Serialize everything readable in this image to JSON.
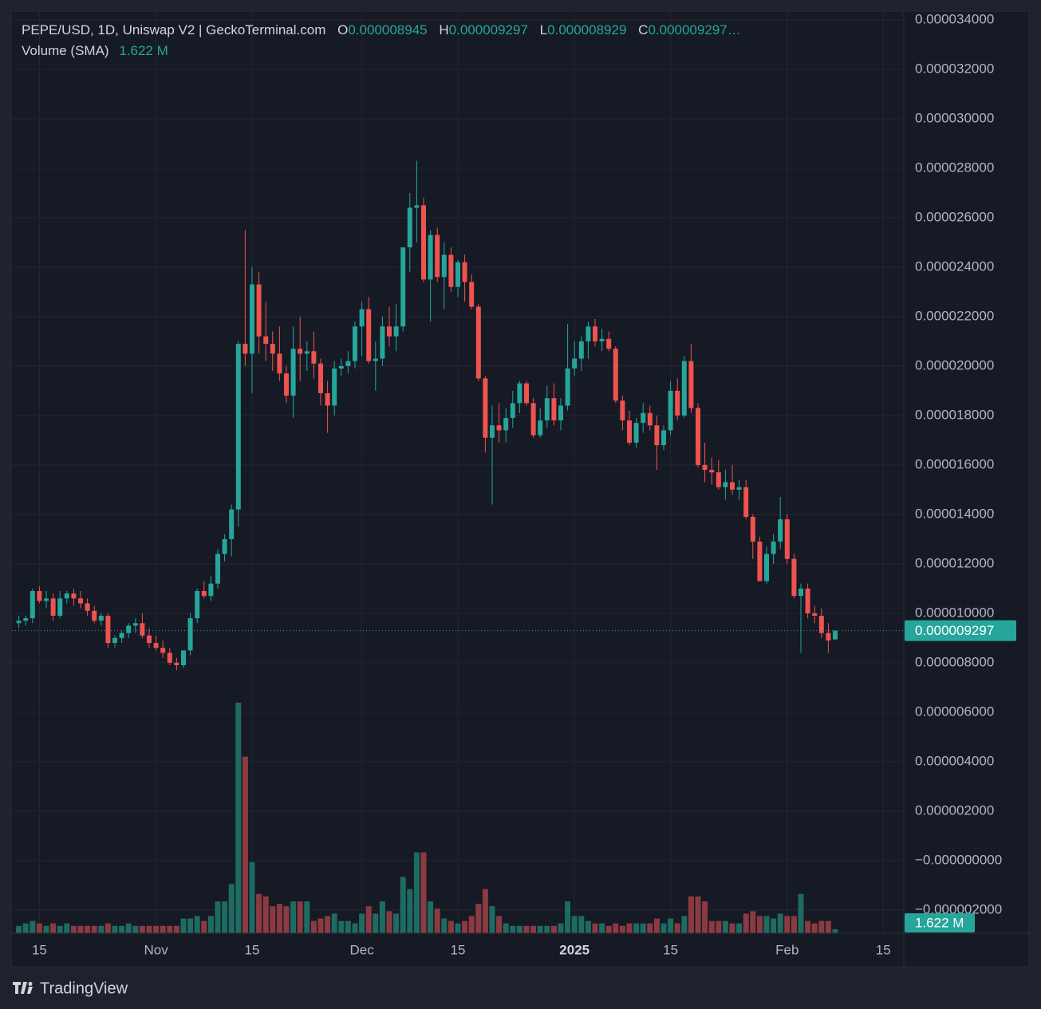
{
  "chart_data": {
    "type": "candlestick",
    "header": {
      "symbol": "PEPE/USD, 1D, Uniswap V2 | GeckoTerminal.com",
      "ohlc": [
        {
          "key": "O",
          "text": "0.000008945"
        },
        {
          "key": "H",
          "text": "0.000009297"
        },
        {
          "key": "L",
          "text": "0.000008929"
        },
        {
          "key": "C",
          "text": "0.000009297…"
        }
      ],
      "volume_name": "Volume (SMA)"
    },
    "volume_text": "1.622 M",
    "price_tag": "0.000009297",
    "brand": "TradingView",
    "up_color": "#26a69a",
    "down_color": "#ef5350",
    "volume_up_color": "#1e6b62",
    "volume_down_color": "#8c3a42",
    "grid": true,
    "x": [
      "2024-10-12",
      "2024-10-13",
      "2024-10-14",
      "2024-10-15",
      "2024-10-16",
      "2024-10-17",
      "2024-10-18",
      "2024-10-19",
      "2024-10-20",
      "2024-10-21",
      "2024-10-22",
      "2024-10-23",
      "2024-10-24",
      "2024-10-25",
      "2024-10-26",
      "2024-10-27",
      "2024-10-28",
      "2024-10-29",
      "2024-10-30",
      "2024-10-31",
      "2024-11-01",
      "2024-11-02",
      "2024-11-03",
      "2024-11-04",
      "2024-11-05",
      "2024-11-06",
      "2024-11-07",
      "2024-11-08",
      "2024-11-09",
      "2024-11-10",
      "2024-11-11",
      "2024-11-12",
      "2024-11-13",
      "2024-11-14",
      "2024-11-15",
      "2024-11-16",
      "2024-11-17",
      "2024-11-18",
      "2024-11-19",
      "2024-11-20",
      "2024-11-21",
      "2024-11-22",
      "2024-11-23",
      "2024-11-24",
      "2024-11-25",
      "2024-11-26",
      "2024-11-27",
      "2024-11-28",
      "2024-11-29",
      "2024-11-30",
      "2024-12-01",
      "2024-12-02",
      "2024-12-03",
      "2024-12-04",
      "2024-12-05",
      "2024-12-06",
      "2024-12-07",
      "2024-12-08",
      "2024-12-09",
      "2024-12-10",
      "2024-12-11",
      "2024-12-12",
      "2024-12-13",
      "2024-12-14",
      "2024-12-15",
      "2024-12-16",
      "2024-12-17",
      "2024-12-18",
      "2024-12-19",
      "2024-12-20",
      "2024-12-21",
      "2024-12-22",
      "2024-12-23",
      "2024-12-24",
      "2024-12-25",
      "2024-12-26",
      "2024-12-27",
      "2024-12-28",
      "2024-12-29",
      "2024-12-30",
      "2024-12-31",
      "2025-01-01",
      "2025-01-02",
      "2025-01-03",
      "2025-01-04",
      "2025-01-05",
      "2025-01-06",
      "2025-01-07",
      "2025-01-08",
      "2025-01-09",
      "2025-01-10",
      "2025-01-11",
      "2025-01-12",
      "2025-01-13",
      "2025-01-14",
      "2025-01-15",
      "2025-01-16",
      "2025-01-17",
      "2025-01-18",
      "2025-01-19",
      "2025-01-20",
      "2025-01-21",
      "2025-01-22",
      "2025-01-23",
      "2025-01-24",
      "2025-01-25",
      "2025-01-26",
      "2025-01-27",
      "2025-01-28",
      "2025-01-29",
      "2025-01-30",
      "2025-01-31",
      "2025-02-01",
      "2025-02-02",
      "2025-02-03",
      "2025-02-04",
      "2025-02-05",
      "2025-02-06",
      "2025-02-07",
      "2025-02-08"
    ],
    "open": [
      9.6e-06,
      9.7e-06,
      9.8e-06,
      1.09e-05,
      1.05e-05,
      1.06e-05,
      9.9e-06,
      1.06e-05,
      1.08e-05,
      1.06e-05,
      1.04e-05,
      1.01e-05,
      9.7e-06,
      9.9e-06,
      8.8e-06,
      9e-06,
      9.2e-06,
      9.5e-06,
      9.6e-06,
      9.1e-06,
      8.8e-06,
      8.6e-06,
      8.4e-06,
      8e-06,
      7.9e-06,
      8.5e-06,
      9.8e-06,
      1.09e-05,
      1.07e-05,
      1.12e-05,
      1.24e-05,
      1.3e-05,
      1.42e-05,
      2.09e-05,
      2.05e-05,
      2.33e-05,
      2.12e-05,
      2.09e-05,
      2.05e-05,
      1.97e-05,
      1.88e-05,
      2.07e-05,
      2.05e-05,
      2.06e-05,
      2.01e-05,
      1.89e-05,
      1.84e-05,
      1.99e-05,
      2e-05,
      2.02e-05,
      2.16e-05,
      2.23e-05,
      2.02e-05,
      2.03e-05,
      2.16e-05,
      2.12e-05,
      2.16e-05,
      2.48e-05,
      2.64e-05,
      2.65e-05,
      2.35e-05,
      2.53e-05,
      2.36e-05,
      2.45e-05,
      2.32e-05,
      2.42e-05,
      2.34e-05,
      2.24e-05,
      1.95e-05,
      1.71e-05,
      1.76e-05,
      1.74e-05,
      1.79e-05,
      1.85e-05,
      1.93e-05,
      1.85e-05,
      1.72e-05,
      1.78e-05,
      1.87e-05,
      1.78e-05,
      1.84e-05,
      1.99e-05,
      2.03e-05,
      2.1e-05,
      2.16e-05,
      2.1e-05,
      2.11e-05,
      2.07e-05,
      1.86e-05,
      1.78e-05,
      1.69e-05,
      1.77e-05,
      1.81e-05,
      1.76e-05,
      1.68e-05,
      1.74e-05,
      1.9e-05,
      1.8e-05,
      2.02e-05,
      1.83e-05,
      1.6e-05,
      1.58e-05,
      1.57e-05,
      1.51e-05,
      1.53e-05,
      1.5e-05,
      1.51e-05,
      1.39e-05,
      1.29e-05,
      1.13e-05,
      1.24e-05,
      1.29e-05,
      1.38e-05,
      1.22e-05,
      1.07e-05,
      1.1e-05,
      1e-05,
      9.9e-06,
      9.2e-06,
      8.945e-06
    ],
    "high": [
      9.9e-06,
      9.9e-06,
      1.1e-05,
      1.11e-05,
      1.09e-05,
      1.08e-05,
      1.09e-05,
      1.09e-05,
      1.1e-05,
      1.09e-05,
      1.06e-05,
      1.03e-05,
      1e-05,
      1e-05,
      9.1e-06,
      9.3e-06,
      9.6e-06,
      9.8e-06,
      1e-05,
      9.4e-06,
      9.1e-06,
      8.9e-06,
      8.6e-06,
      8.2e-06,
      8.5e-06,
      1e-05,
      1.1e-05,
      1.13e-05,
      1.15e-05,
      1.26e-05,
      1.32e-05,
      1.44e-05,
      2.1e-05,
      2.55e-05,
      2.4e-05,
      2.38e-05,
      2.26e-05,
      2.14e-05,
      2.16e-05,
      2e-05,
      2.16e-05,
      2.2e-05,
      2.1e-05,
      2.14e-05,
      2.03e-05,
      1.94e-05,
      2.02e-05,
      2.03e-05,
      2.06e-05,
      2.18e-05,
      2.26e-05,
      2.28e-05,
      2.1e-05,
      2.2e-05,
      2.24e-05,
      2.25e-05,
      2.48e-05,
      2.7e-05,
      2.83e-05,
      2.68e-05,
      2.55e-05,
      2.56e-05,
      2.5e-05,
      2.48e-05,
      2.43e-05,
      2.45e-05,
      2.37e-05,
      2.25e-05,
      1.96e-05,
      1.84e-05,
      1.85e-05,
      1.83e-05,
      1.9e-05,
      1.94e-05,
      1.94e-05,
      1.87e-05,
      1.83e-05,
      1.92e-05,
      1.93e-05,
      1.87e-05,
      2.17e-05,
      2.1e-05,
      2.12e-05,
      2.18e-05,
      2.19e-05,
      2.15e-05,
      2.14e-05,
      2.08e-05,
      1.88e-05,
      1.82e-05,
      1.79e-05,
      1.85e-05,
      1.84e-05,
      1.8e-05,
      1.76e-05,
      1.94e-05,
      1.95e-05,
      2.04e-05,
      2.09e-05,
      1.85e-05,
      1.69e-05,
      1.63e-05,
      1.62e-05,
      1.58e-05,
      1.6e-05,
      1.54e-05,
      1.54e-05,
      1.4e-05,
      1.31e-05,
      1.27e-05,
      1.32e-05,
      1.47e-05,
      1.4e-05,
      1.24e-05,
      1.12e-05,
      1.12e-05,
      1.03e-05,
      1.02e-05,
      9.6e-06,
      9.297e-06
    ],
    "low": [
      9.4e-06,
      9.5e-06,
      9.6e-06,
      1.04e-05,
      1.02e-05,
      9.7e-06,
      9.8e-06,
      1.04e-05,
      1.03e-05,
      1.02e-05,
      9.9e-06,
      9.6e-06,
      9.5e-06,
      8.6e-06,
      8.6e-06,
      8.8e-06,
      9e-06,
      9.2e-06,
      9e-06,
      8.6e-06,
      8.5e-06,
      8.2e-06,
      7.9e-06,
      7.7e-06,
      7.8e-06,
      8.3e-06,
      9.6e-06,
      1.06e-05,
      1.05e-05,
      1.1e-05,
      1.21e-05,
      1.23e-05,
      1.35e-05,
      2e-05,
      1.89e-05,
      2.05e-05,
      2.02e-05,
      1.98e-05,
      1.94e-05,
      1.85e-05,
      1.79e-05,
      1.94e-05,
      1.98e-05,
      1.95e-05,
      1.84e-05,
      1.73e-05,
      1.8e-05,
      1.96e-05,
      1.97e-05,
      1.99e-05,
      2.04e-05,
      2.01e-05,
      1.9e-05,
      2e-05,
      2.08e-05,
      2.06e-05,
      2.14e-05,
      2.38e-05,
      2.5e-05,
      2.34e-05,
      2.18e-05,
      2.34e-05,
      2.23e-05,
      2.3e-05,
      2.28e-05,
      2.26e-05,
      2.23e-05,
      1.94e-05,
      1.65e-05,
      1.44e-05,
      1.69e-05,
      1.69e-05,
      1.75e-05,
      1.81e-05,
      1.84e-05,
      1.71e-05,
      1.71e-05,
      1.75e-05,
      1.76e-05,
      1.74e-05,
      1.82e-05,
      1.96e-05,
      1.98e-05,
      2.03e-05,
      2.08e-05,
      2.06e-05,
      2.06e-05,
      1.85e-05,
      1.74e-05,
      1.68e-05,
      1.67e-05,
      1.73e-05,
      1.74e-05,
      1.58e-05,
      1.66e-05,
      1.72e-05,
      1.78e-05,
      1.79e-05,
      1.81e-05,
      1.59e-05,
      1.53e-05,
      1.52e-05,
      1.5e-05,
      1.46e-05,
      1.48e-05,
      1.46e-05,
      1.38e-05,
      1.22e-05,
      1.13e-05,
      1.12e-05,
      1.2e-05,
      1.26e-05,
      1.2e-05,
      1.06e-05,
      8.4e-06,
      9.8e-06,
      9.6e-06,
      9e-06,
      8.4e-06,
      8.929e-06
    ],
    "close": [
      9.7e-06,
      9.8e-06,
      1.09e-05,
      1.05e-05,
      1.06e-05,
      9.9e-06,
      1.06e-05,
      1.08e-05,
      1.06e-05,
      1.04e-05,
      1.01e-05,
      9.7e-06,
      9.9e-06,
      8.8e-06,
      9e-06,
      9.2e-06,
      9.5e-06,
      9.6e-06,
      9.1e-06,
      8.8e-06,
      8.6e-06,
      8.4e-06,
      8e-06,
      7.9e-06,
      8.5e-06,
      9.8e-06,
      1.09e-05,
      1.07e-05,
      1.12e-05,
      1.24e-05,
      1.3e-05,
      1.42e-05,
      2.09e-05,
      2.05e-05,
      2.33e-05,
      2.12e-05,
      2.09e-05,
      2.05e-05,
      1.97e-05,
      1.88e-05,
      2.07e-05,
      2.05e-05,
      2.06e-05,
      2.01e-05,
      1.89e-05,
      1.84e-05,
      1.99e-05,
      2e-05,
      2.02e-05,
      2.16e-05,
      2.23e-05,
      2.02e-05,
      2.03e-05,
      2.16e-05,
      2.12e-05,
      2.16e-05,
      2.48e-05,
      2.64e-05,
      2.65e-05,
      2.35e-05,
      2.53e-05,
      2.36e-05,
      2.45e-05,
      2.32e-05,
      2.42e-05,
      2.34e-05,
      2.24e-05,
      1.95e-05,
      1.71e-05,
      1.76e-05,
      1.74e-05,
      1.79e-05,
      1.85e-05,
      1.93e-05,
      1.85e-05,
      1.72e-05,
      1.78e-05,
      1.87e-05,
      1.78e-05,
      1.84e-05,
      1.99e-05,
      2.03e-05,
      2.1e-05,
      2.16e-05,
      2.1e-05,
      2.11e-05,
      2.07e-05,
      1.86e-05,
      1.78e-05,
      1.69e-05,
      1.77e-05,
      1.81e-05,
      1.76e-05,
      1.68e-05,
      1.74e-05,
      1.9e-05,
      1.8e-05,
      2.02e-05,
      1.83e-05,
      1.6e-05,
      1.58e-05,
      1.57e-05,
      1.51e-05,
      1.53e-05,
      1.5e-05,
      1.51e-05,
      1.39e-05,
      1.29e-05,
      1.13e-05,
      1.24e-05,
      1.29e-05,
      1.38e-05,
      1.22e-05,
      1.07e-05,
      1.1e-05,
      1e-05,
      9.9e-06,
      9.2e-06,
      8.9e-06,
      9.297e-06
    ],
    "volume": [
      3,
      4,
      5,
      4,
      3,
      4,
      3,
      4,
      3,
      3,
      3,
      3,
      3,
      4,
      3,
      3,
      4,
      3,
      3,
      3,
      3,
      3,
      3,
      3,
      6,
      6,
      7,
      5,
      7,
      13,
      13,
      20,
      94,
      72,
      29,
      16,
      15,
      11,
      12,
      11,
      13,
      13,
      13,
      5,
      6,
      7,
      8,
      5,
      5,
      4,
      8,
      11,
      8,
      13,
      9,
      8,
      23,
      18,
      33,
      33,
      13,
      10,
      6,
      5,
      4,
      5,
      7,
      12,
      18,
      11,
      7,
      4,
      3,
      3,
      3,
      3,
      3,
      3,
      3,
      4,
      13,
      7,
      7,
      5,
      4,
      4,
      3,
      4,
      3,
      4,
      4,
      4,
      4,
      6,
      4,
      6,
      4,
      7,
      15,
      15,
      13,
      5,
      5,
      5,
      4,
      4,
      8,
      9,
      7,
      7,
      6,
      8,
      7,
      7,
      16,
      5,
      4,
      5,
      5,
      1.622
    ],
    "xlim": [
      "2024-10-11",
      "2025-02-18"
    ],
    "xticks": [
      {
        "value": "2024-10-15",
        "label": "15"
      },
      {
        "value": "2024-11-01",
        "label": "Nov"
      },
      {
        "value": "2024-11-15",
        "label": "15"
      },
      {
        "value": "2024-12-01",
        "label": "Dec"
      },
      {
        "value": "2024-12-15",
        "label": "15"
      },
      {
        "value": "2025-01-01",
        "label": "2025"
      },
      {
        "value": "2025-01-15",
        "label": "15"
      },
      {
        "value": "2025-02-01",
        "label": "Feb"
      },
      {
        "value": "2025-02-15",
        "label": "15"
      }
    ],
    "ylim": [
      -2.94e-06,
      3.432e-05
    ],
    "yticks": [
      {
        "value": 3.4e-05,
        "label": "0.000034000"
      },
      {
        "value": 3.2e-05,
        "label": "0.000032000"
      },
      {
        "value": 3e-05,
        "label": "0.000030000"
      },
      {
        "value": 2.8e-05,
        "label": "0.000028000"
      },
      {
        "value": 2.6e-05,
        "label": "0.000026000"
      },
      {
        "value": 2.4e-05,
        "label": "0.000024000"
      },
      {
        "value": 2.2e-05,
        "label": "0.000022000"
      },
      {
        "value": 2e-05,
        "label": "0.000020000"
      },
      {
        "value": 1.8e-05,
        "label": "0.000018000"
      },
      {
        "value": 1.6e-05,
        "label": "0.000016000"
      },
      {
        "value": 1.4e-05,
        "label": "0.000014000"
      },
      {
        "value": 1.2e-05,
        "label": "0.000012000"
      },
      {
        "value": 1e-05,
        "label": "0.000010000"
      },
      {
        "value": 8e-06,
        "label": "0.000008000"
      },
      {
        "value": 6e-06,
        "label": "0.000006000"
      },
      {
        "value": 4e-06,
        "label": "0.000004000"
      },
      {
        "value": 2e-06,
        "label": "0.000002000"
      },
      {
        "value": 0,
        "label": "−0.000000000"
      },
      {
        "value": -2e-06,
        "label": "−0.000002000"
      }
    ]
  }
}
